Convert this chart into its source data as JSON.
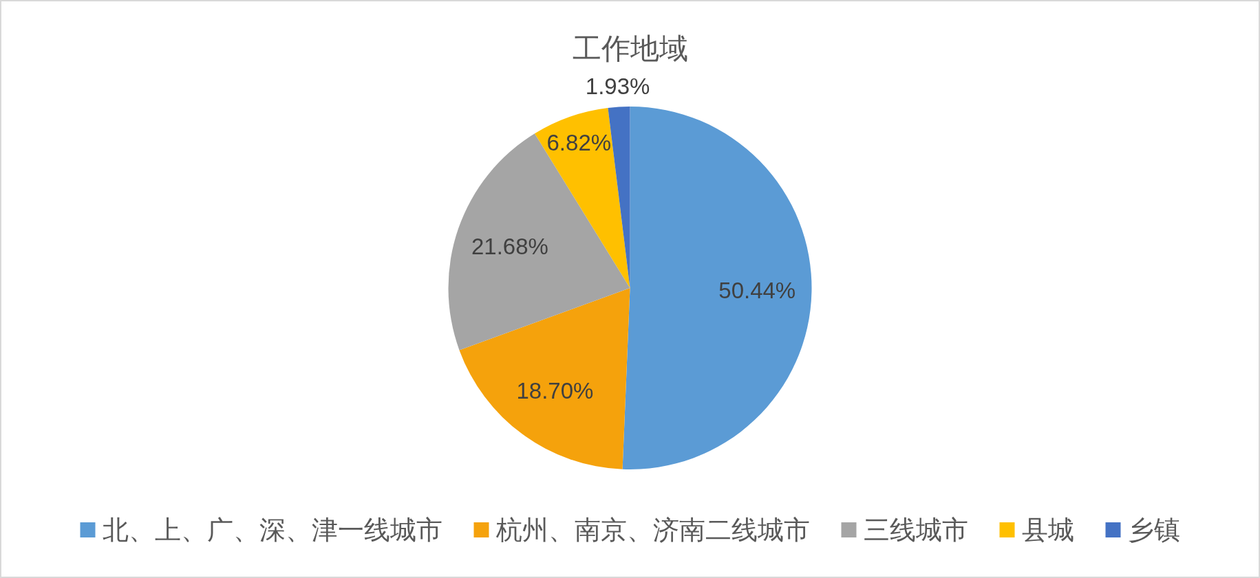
{
  "chart_data": {
    "type": "pie",
    "title": "工作地域",
    "categories": [
      "北、上、广、深、津一线城市",
      "杭州、南京、济南二线城市",
      "三线城市",
      "县城",
      "乡镇"
    ],
    "values": [
      50.44,
      18.7,
      21.68,
      6.82,
      1.93
    ],
    "colors": [
      "#5b9bd5",
      "#f5a20c",
      "#a5a5a5",
      "#ffc000",
      "#4472c4"
    ],
    "value_labels": [
      "50.44%",
      "18.70%",
      "21.68%",
      "6.82%",
      "1.93%"
    ],
    "legend": "bottom"
  }
}
